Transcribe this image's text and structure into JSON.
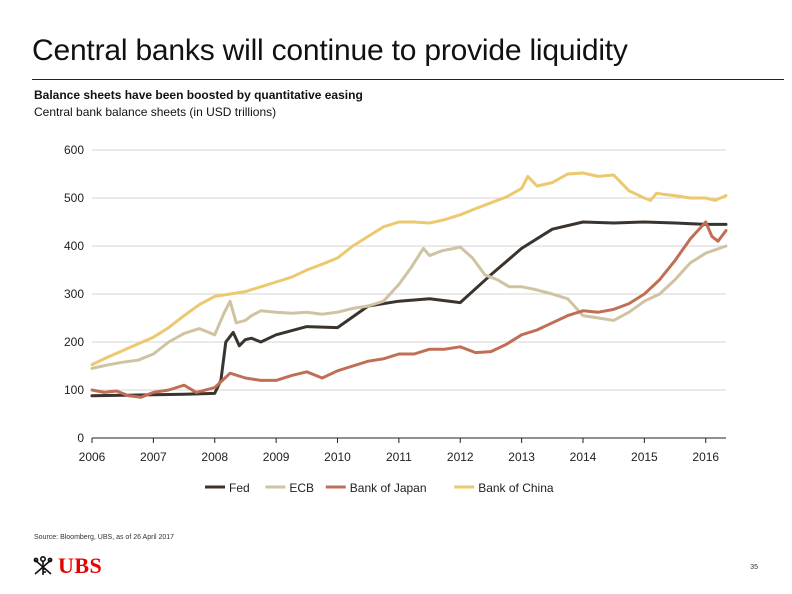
{
  "slide": {
    "title": "Central banks will continue to provide liquidity",
    "subtitle": "Balance sheets have been boosted by quantitative easing",
    "subtitle2": "Central bank balance sheets (in USD trillions)",
    "source": "Source: Bloomberg, UBS, as of 26 April 2017",
    "page_number": "35",
    "logo_text": "UBS"
  },
  "colors": {
    "Fed": "#3b342e",
    "ECB": "#cfc3a2",
    "Bank of Japan": "#c06f57",
    "Bank of China": "#ecc96f",
    "axis": "#222222",
    "grid": "#d6d6d6",
    "logo": "#e60000"
  },
  "chart_data": {
    "type": "line",
    "title": "",
    "xlabel": "",
    "ylabel": "",
    "xlim": [
      2006,
      2016.33
    ],
    "ylim": [
      0,
      600
    ],
    "yticks": [
      0,
      100,
      200,
      300,
      400,
      500,
      600
    ],
    "xticks": [
      2006,
      2007,
      2008,
      2009,
      2010,
      2011,
      2012,
      2013,
      2014,
      2015,
      2016
    ],
    "grid": "horizontal",
    "legend": "bottom-center",
    "series": [
      {
        "name": "Fed",
        "x": [
          2006,
          2006.5,
          2007,
          2007.5,
          2008,
          2008.1,
          2008.18,
          2008.3,
          2008.4,
          2008.5,
          2008.6,
          2008.75,
          2009,
          2009.5,
          2010,
          2010.5,
          2011,
          2011.5,
          2012,
          2012.5,
          2013,
          2013.5,
          2014,
          2014.5,
          2015,
          2015.5,
          2016,
          2016.33
        ],
        "values": [
          88,
          89,
          90,
          91,
          93,
          120,
          200,
          220,
          192,
          205,
          208,
          200,
          215,
          232,
          230,
          275,
          285,
          290,
          282,
          340,
          395,
          435,
          450,
          448,
          450,
          448,
          445,
          445
        ]
      },
      {
        "name": "ECB",
        "x": [
          2006,
          2006.25,
          2006.5,
          2006.75,
          2007,
          2007.25,
          2007.5,
          2007.75,
          2008,
          2008.15,
          2008.25,
          2008.35,
          2008.5,
          2008.6,
          2008.75,
          2009,
          2009.25,
          2009.5,
          2009.75,
          2010,
          2010.25,
          2010.5,
          2010.75,
          2011,
          2011.2,
          2011.4,
          2011.5,
          2011.7,
          2011.9,
          2012,
          2012.2,
          2012.4,
          2012.6,
          2012.8,
          2013,
          2013.2,
          2013.5,
          2013.75,
          2014,
          2014.25,
          2014.5,
          2014.75,
          2015,
          2015.25,
          2015.5,
          2015.75,
          2016,
          2016.33
        ],
        "values": [
          145,
          152,
          158,
          162,
          175,
          200,
          218,
          228,
          215,
          260,
          285,
          240,
          245,
          255,
          265,
          262,
          260,
          262,
          258,
          262,
          270,
          275,
          285,
          320,
          355,
          395,
          380,
          390,
          395,
          398,
          375,
          340,
          330,
          315,
          315,
          310,
          300,
          290,
          255,
          250,
          245,
          262,
          285,
          300,
          330,
          365,
          385,
          400
        ]
      },
      {
        "name": "Bank of Japan",
        "x": [
          2006,
          2006.2,
          2006.4,
          2006.6,
          2006.8,
          2007,
          2007.25,
          2007.5,
          2007.7,
          2008,
          2008.25,
          2008.5,
          2008.75,
          2009,
          2009.25,
          2009.5,
          2009.75,
          2010,
          2010.25,
          2010.5,
          2010.75,
          2011,
          2011.25,
          2011.5,
          2011.75,
          2012,
          2012.25,
          2012.5,
          2012.75,
          2013,
          2013.25,
          2013.5,
          2013.75,
          2014,
          2014.25,
          2014.5,
          2014.75,
          2015,
          2015.25,
          2015.5,
          2015.75,
          2016,
          2016.1,
          2016.2,
          2016.33
        ],
        "values": [
          100,
          95,
          98,
          88,
          85,
          95,
          100,
          110,
          95,
          105,
          135,
          125,
          120,
          120,
          130,
          138,
          125,
          140,
          150,
          160,
          165,
          175,
          175,
          185,
          185,
          190,
          178,
          180,
          195,
          215,
          225,
          240,
          255,
          265,
          262,
          268,
          280,
          300,
          330,
          370,
          415,
          450,
          420,
          410,
          432
        ]
      },
      {
        "name": "Bank of China",
        "x": [
          2006,
          2006.25,
          2006.5,
          2006.75,
          2007,
          2007.25,
          2007.5,
          2007.75,
          2008,
          2008.25,
          2008.5,
          2008.75,
          2009,
          2009.25,
          2009.5,
          2009.75,
          2010,
          2010.25,
          2010.5,
          2010.75,
          2011,
          2011.25,
          2011.5,
          2011.75,
          2012,
          2012.25,
          2012.5,
          2012.75,
          2013,
          2013.1,
          2013.25,
          2013.5,
          2013.75,
          2014,
          2014.25,
          2014.5,
          2014.75,
          2015,
          2015.1,
          2015.2,
          2015.3,
          2015.5,
          2015.75,
          2016,
          2016.15,
          2016.33
        ],
        "values": [
          153,
          168,
          182,
          196,
          210,
          230,
          255,
          278,
          295,
          300,
          305,
          315,
          325,
          335,
          350,
          362,
          375,
          400,
          420,
          440,
          450,
          450,
          448,
          455,
          465,
          478,
          490,
          502,
          520,
          545,
          525,
          532,
          550,
          552,
          545,
          548,
          515,
          500,
          495,
          510,
          508,
          505,
          500,
          500,
          495,
          505
        ]
      }
    ]
  }
}
